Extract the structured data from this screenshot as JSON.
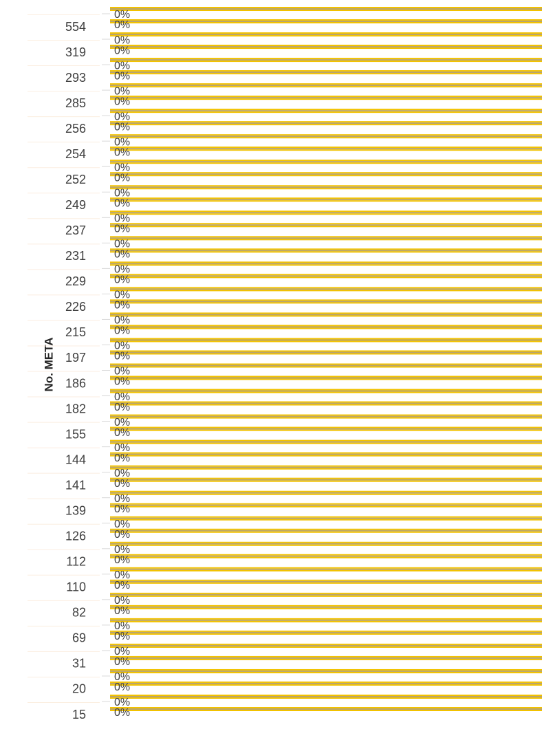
{
  "chart_data": {
    "type": "bar",
    "orientation": "horizontal",
    "y_label": "No. META",
    "categories": [
      "554",
      "319",
      "293",
      "285",
      "256",
      "254",
      "252",
      "249",
      "237",
      "231",
      "229",
      "226",
      "215",
      "197",
      "186",
      "182",
      "155",
      "144",
      "141",
      "139",
      "126",
      "112",
      "110",
      "82",
      "69",
      "31",
      "20",
      "15"
    ],
    "series": [
      {
        "color": "#f2c200",
        "values": [
          0,
          0,
          0,
          0,
          0,
          0,
          0,
          0,
          0,
          0,
          0,
          0,
          0,
          0,
          0,
          0,
          0,
          0,
          0,
          0,
          0,
          0,
          0,
          0,
          0,
          0,
          0,
          0
        ],
        "value_labels": [
          "0%",
          "0%",
          "0%",
          "0%",
          "0%",
          "0%",
          "0%",
          "0%",
          "0%",
          "0%",
          "0%",
          "0%",
          "0%",
          "0%",
          "0%",
          "0%",
          "0%",
          "0%",
          "0%",
          "0%",
          "0%",
          "0%",
          "0%",
          "0%",
          "0%",
          "0%",
          "0%",
          "0%"
        ]
      },
      {
        "color": "#b8a46e",
        "values": [
          0,
          0,
          0,
          0,
          0,
          0,
          0,
          0,
          0,
          0,
          0,
          0,
          0,
          0,
          0,
          0,
          0,
          0,
          0,
          0,
          0,
          0,
          0,
          0,
          0,
          0,
          0,
          0
        ],
        "value_labels": [
          "0%",
          "0%",
          "0%",
          "0%",
          "0%",
          "0%",
          "0%",
          "0%",
          "0%",
          "0%",
          "0%",
          "0%",
          "0%",
          "0%",
          "0%",
          "0%",
          "0%",
          "0%",
          "0%",
          "0%",
          "0%",
          "0%",
          "0%",
          "0%",
          "0%",
          "0%",
          "0%",
          "0%"
        ]
      }
    ]
  }
}
